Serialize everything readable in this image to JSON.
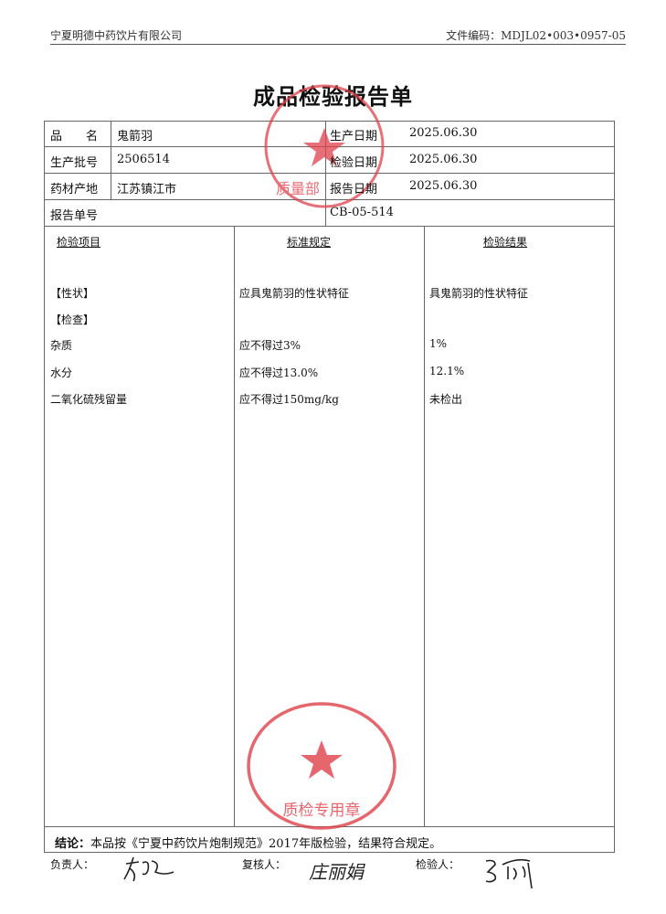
{
  "header": {
    "company": "宁夏明德中药饮片有限公司",
    "doc_code": "文件编码：MDJL02•003•0957-05"
  },
  "title": "成品检验报告单",
  "info": {
    "name_label": "品　　名",
    "name": "鬼箭羽",
    "batch_label": "生产批号",
    "batch": "2506514",
    "origin_label": "药材产地",
    "origin": "江苏镇江市",
    "prod_date_label": "生产日期",
    "prod_date": "2025.06.30",
    "insp_date_label": "检验日期",
    "insp_date": "2025.06.30",
    "report_date_label": "报告日期",
    "report_date": "2025.06.30",
    "report_no_label": "报告单号",
    "report_no": "CB-05-514"
  },
  "columns": [
    "检验项目",
    "标准规定",
    "检验结果"
  ],
  "rows": [
    {
      "item": "【性状】",
      "standard": "应具鬼箭羽的性状特征",
      "result": "具鬼箭羽的性状特征"
    },
    {
      "item": "【检查】",
      "standard": "",
      "result": ""
    },
    {
      "item": "杂质",
      "standard": "应不得过3%",
      "result": "1%"
    },
    {
      "item": "水分",
      "standard": "应不得过13.0%",
      "result": "12.1%"
    },
    {
      "item": "二氧化硫残留量",
      "standard": "应不得过150mg/kg",
      "result": "未检出"
    }
  ],
  "conclusion": {
    "label": "结论：",
    "text": "本品按《宁夏中药饮片炮制规范》2017年版检验，结果符合规定。"
  },
  "signatures": {
    "responsible_label": "负责人：",
    "reviewer_label": "复核人：",
    "inspector_label": "检验人：",
    "reviewer_sig": "庄丽娟"
  },
  "stamps": {
    "top": {
      "text": "宁夏明德中药饮片有限公司",
      "dept": "质量部"
    },
    "bottom": {
      "text": "宁夏明德中药饮片有限公司",
      "dept": "质检专用章"
    },
    "color": "#e0404a"
  }
}
